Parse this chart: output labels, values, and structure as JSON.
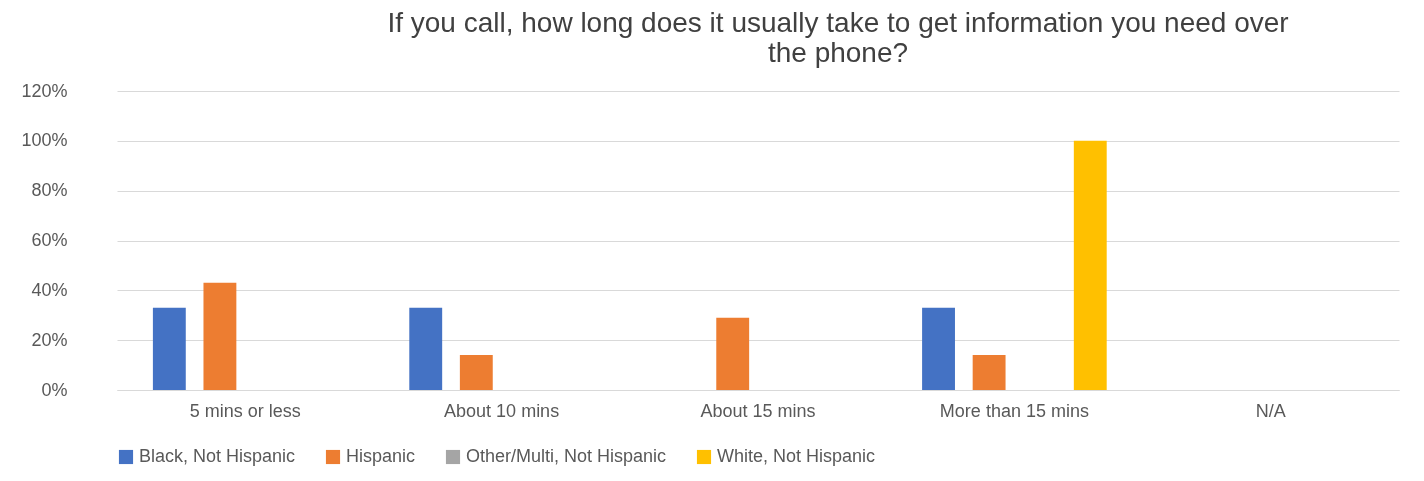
{
  "chart_data": {
    "type": "bar",
    "title": "If you call, how long does it usually take to get information you need over the phone?",
    "categories": [
      "5 mins or less",
      "About 10 mins",
      "About 15 mins",
      "More than 15 mins",
      "N/A"
    ],
    "series": [
      {
        "name": "Black, Not Hispanic",
        "color": "#4472c4",
        "values": [
          33,
          33,
          0,
          33,
          0
        ]
      },
      {
        "name": "Hispanic",
        "color": "#ed7d31",
        "values": [
          43,
          14,
          29,
          14,
          0
        ]
      },
      {
        "name": "Other/Multi, Not Hispanic",
        "color": "#a5a5a5",
        "values": [
          0,
          0,
          0,
          0,
          0
        ]
      },
      {
        "name": "White, Not Hispanic",
        "color": "#ffc000",
        "values": [
          0,
          0,
          0,
          100,
          0
        ]
      }
    ],
    "ylim": [
      0,
      120
    ],
    "yticks": [
      {
        "value": 0,
        "label": "0%"
      },
      {
        "value": 20,
        "label": "20%"
      },
      {
        "value": 40,
        "label": "40%"
      },
      {
        "value": 60,
        "label": "60%"
      },
      {
        "value": 80,
        "label": "80%"
      },
      {
        "value": 100,
        "label": "100%"
      },
      {
        "value": 120,
        "label": "120%"
      }
    ],
    "grid": "y",
    "legend": "bottom"
  }
}
